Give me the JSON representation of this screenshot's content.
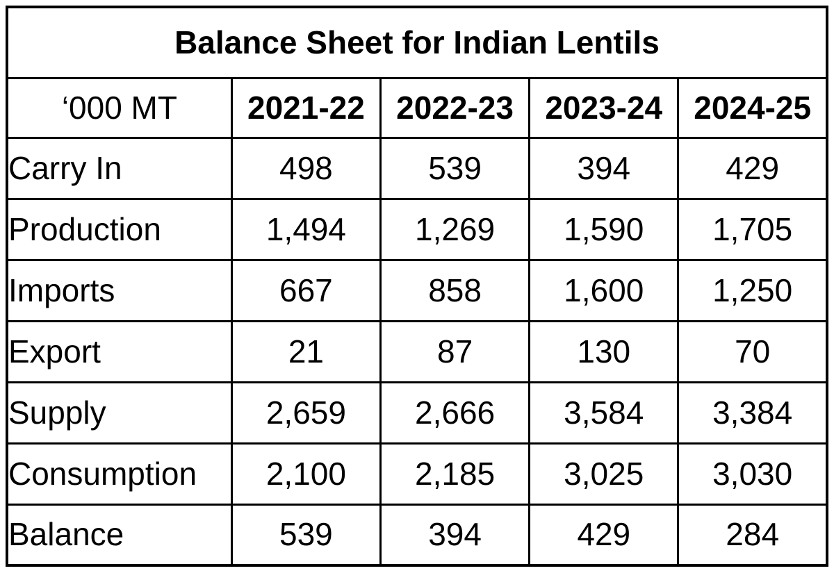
{
  "colors": {
    "background": "#ffffff",
    "border": "#000000",
    "text": "#000000"
  },
  "table": {
    "title": "Balance Sheet for Indian Lentils",
    "unit_label": "‘000 MT",
    "columns": [
      "2021-22",
      "2022-23",
      "2023-24",
      "2024-25"
    ],
    "rows": [
      {
        "label": "Carry In",
        "values": [
          "498",
          "539",
          "394",
          "429"
        ]
      },
      {
        "label": "Production",
        "values": [
          "1,494",
          "1,269",
          "1,590",
          "1,705"
        ]
      },
      {
        "label": "Imports",
        "values": [
          "667",
          "858",
          "1,600",
          "1,250"
        ]
      },
      {
        "label": "Export",
        "values": [
          "21",
          "87",
          "130",
          "70"
        ]
      },
      {
        "label": "Supply",
        "values": [
          "2,659",
          "2,666",
          "3,584",
          "3,384"
        ]
      },
      {
        "label": "Consumption",
        "values": [
          "2,100",
          "2,185",
          "3,025",
          "3,030"
        ]
      },
      {
        "label": "Balance",
        "values": [
          "539",
          "394",
          "429",
          "284"
        ]
      }
    ]
  },
  "chart_data": {
    "type": "table",
    "title": "Balance Sheet for Indian Lentils",
    "unit": "'000 MT (thousand metric tonnes)",
    "categories": [
      "2021-22",
      "2022-23",
      "2023-24",
      "2024-25"
    ],
    "series": [
      {
        "name": "Carry In",
        "values": [
          498,
          539,
          394,
          429
        ]
      },
      {
        "name": "Production",
        "values": [
          1494,
          1269,
          1590,
          1705
        ]
      },
      {
        "name": "Imports",
        "values": [
          667,
          858,
          1600,
          1250
        ]
      },
      {
        "name": "Export",
        "values": [
          21,
          87,
          130,
          70
        ]
      },
      {
        "name": "Supply",
        "values": [
          2659,
          2666,
          3584,
          3384
        ]
      },
      {
        "name": "Consumption",
        "values": [
          2100,
          2185,
          3025,
          3030
        ]
      },
      {
        "name": "Balance",
        "values": [
          539,
          394,
          429,
          284
        ]
      }
    ],
    "layout": {
      "grid": "full black cell borders",
      "legend": "none",
      "header_style": "bold year columns, bold merged title row"
    }
  }
}
